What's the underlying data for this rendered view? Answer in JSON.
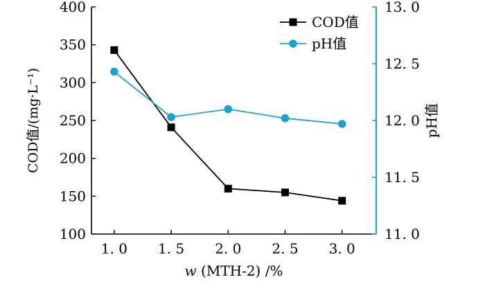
{
  "chart_data": {
    "type": "line",
    "x": [
      1.0,
      1.5,
      2.0,
      2.5,
      3.0
    ],
    "x_tick_labels": [
      "1. 0",
      "1. 5",
      "2. 0",
      "2. 5",
      "3. 0"
    ],
    "xlim": [
      0.8,
      3.3
    ],
    "xlabel_italic": "w",
    "xlabel_rest": " (MTH-2) /%",
    "ylabel_left": "COD值/(mg·L⁻¹)",
    "ylabel_right": "pH值",
    "ylim_left": [
      100,
      400
    ],
    "ylim_right": [
      11.0,
      13.0
    ],
    "y_left_ticks": [
      100,
      150,
      200,
      250,
      300,
      350,
      400
    ],
    "y_left_tick_labels": [
      "100",
      "150",
      "200",
      "250",
      "300",
      "350",
      "400"
    ],
    "y_right_ticks": [
      11.0,
      11.5,
      12.0,
      12.5,
      13.0
    ],
    "y_right_tick_labels": [
      "11. 0",
      "11. 5",
      "12. 0",
      "12. 5",
      "13. 0"
    ],
    "grid": false,
    "legend_position": "top-right",
    "series": [
      {
        "name": "COD值",
        "axis": "left",
        "marker": "square",
        "color": "#000000",
        "values": [
          343,
          241,
          160,
          155,
          144
        ]
      },
      {
        "name": "pH值",
        "axis": "right",
        "marker": "circle",
        "color": "#1aa3d0",
        "values": [
          12.43,
          12.03,
          12.1,
          12.02,
          11.97
        ]
      }
    ],
    "right_axis_color": "#1aa3d0"
  }
}
